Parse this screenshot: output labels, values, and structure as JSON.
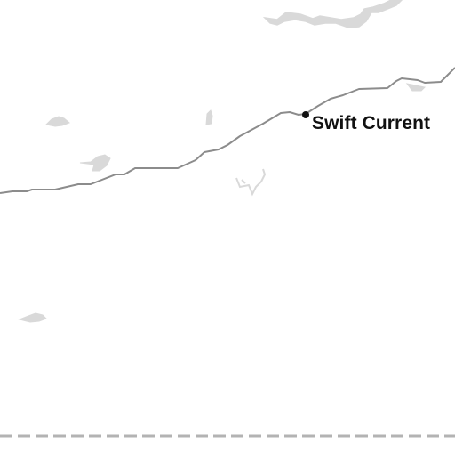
{
  "map": {
    "city": {
      "name": "Swift Current"
    },
    "colors": {
      "background": "#ffffff",
      "water": "#d9d9d9",
      "road": "#8c8c8c",
      "border": "#b3b3b3",
      "city_dot": "#111111",
      "label": "#111111"
    }
  }
}
